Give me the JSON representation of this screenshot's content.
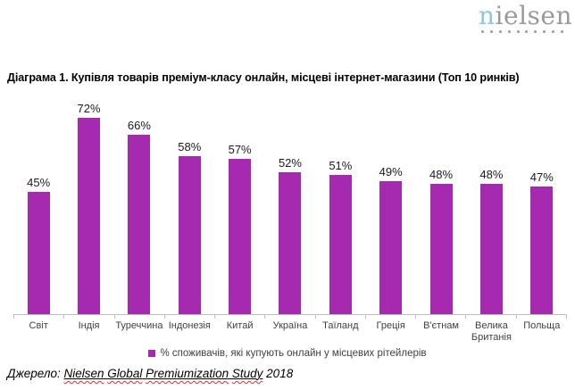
{
  "logo": {
    "text_highlight": "n",
    "text_rest": "ielsen",
    "dots_count": 10,
    "gray_color": "#9a9a9a",
    "accent_color": "#8bc6e9"
  },
  "chart_data": {
    "type": "bar",
    "title": "Діаграма 1. Купівля товарів преміум-класу онлайн, місцеві інтернет-магазини (Топ 10 ринків)",
    "categories": [
      "Світ",
      "Індія",
      "Туреччина",
      "Індонезія",
      "Китай",
      "Україна",
      "Таїланд",
      "Греція",
      "В'єтнам",
      "Велика Британія",
      "Польща"
    ],
    "values": [
      45,
      72,
      66,
      58,
      57,
      52,
      51,
      49,
      48,
      48,
      47
    ],
    "value_labels": [
      "45%",
      "72%",
      "66%",
      "58%",
      "57%",
      "52%",
      "51%",
      "49%",
      "48%",
      "48%",
      "47%"
    ],
    "bar_color": "#a62ab0",
    "axis_color": "#bfbfbf",
    "ylim": [
      0,
      80
    ],
    "grid": false,
    "y_axis_visible": false,
    "legend_position": "bottom",
    "legend": {
      "label": "% споживачів, які купують онлайн у місцевих рітейлерів",
      "marker_color": "#a62ab0"
    }
  },
  "source": {
    "prefix": "Джерело: ",
    "linked_text": "Nielsen Global Premiumization Study",
    "year": " 2018"
  }
}
